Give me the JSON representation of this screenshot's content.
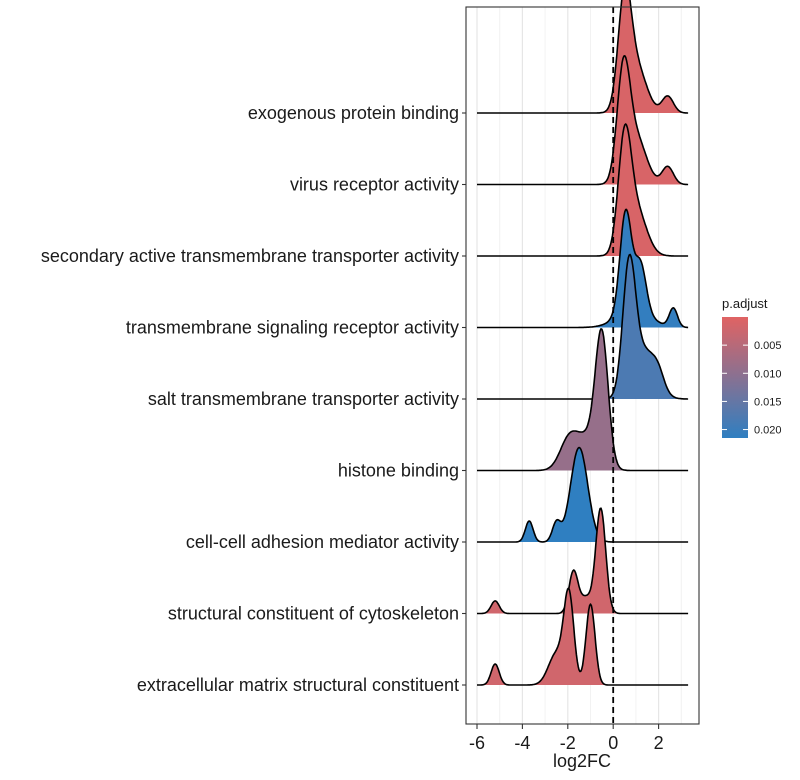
{
  "chart_data": {
    "type": "ridgeline",
    "xlabel": "log2FC",
    "xlim": [
      -6.5,
      3.7
    ],
    "x_ticks": [
      -6,
      -4,
      -2,
      0,
      2
    ],
    "x_tick_labels": [
      "-6",
      "-4",
      "-2",
      "0",
      "2"
    ],
    "reference_line_x": 0,
    "reference_line_style": "dashed",
    "grid": true,
    "color_scale": {
      "title": "p.adjust",
      "low_value": 0.0,
      "high_value": 0.0215,
      "low_color": "#e06363",
      "high_color": "#2f7fc1",
      "ticks": [
        0.005,
        0.01,
        0.015,
        0.02
      ],
      "tick_labels": [
        "0.005",
        "0.010",
        "0.015",
        "0.020"
      ]
    },
    "legend_position": "right",
    "series": [
      {
        "name": "exogenous protein binding",
        "p_adjust": 0.001,
        "x_range": [
          -6.0,
          3.3
        ],
        "peaks": [
          {
            "mu": 0.5,
            "sigma": 0.28,
            "h": 1.0
          },
          {
            "mu": 1.0,
            "sigma": 0.45,
            "h": 0.45
          },
          {
            "mu": 2.4,
            "sigma": 0.25,
            "h": 0.16
          }
        ]
      },
      {
        "name": "virus receptor activity",
        "p_adjust": 0.001,
        "x_range": [
          -6.0,
          3.3
        ],
        "peaks": [
          {
            "mu": 0.45,
            "sigma": 0.28,
            "h": 1.0
          },
          {
            "mu": 1.0,
            "sigma": 0.45,
            "h": 0.45
          },
          {
            "mu": 2.4,
            "sigma": 0.25,
            "h": 0.17
          }
        ]
      },
      {
        "name": "secondary active transmembrane transporter activity",
        "p_adjust": 0.001,
        "x_range": [
          -6.0,
          3.3
        ],
        "peaks": [
          {
            "mu": 0.5,
            "sigma": 0.28,
            "h": 1.0
          },
          {
            "mu": 1.0,
            "sigma": 0.45,
            "h": 0.45
          }
        ]
      },
      {
        "name": "transmembrane signaling receptor activity",
        "p_adjust": 0.021,
        "x_range": [
          -6.0,
          3.3
        ],
        "peaks": [
          {
            "mu": 0.55,
            "sigma": 0.25,
            "h": 0.95
          },
          {
            "mu": 1.2,
            "sigma": 0.25,
            "h": 0.45
          },
          {
            "mu": 2.65,
            "sigma": 0.18,
            "h": 0.18
          },
          {
            "mu": 0.9,
            "sigma": 0.7,
            "h": 0.18
          }
        ]
      },
      {
        "name": "salt transmembrane transporter activity",
        "p_adjust": 0.018,
        "x_range": [
          -6.0,
          3.3
        ],
        "peaks": [
          {
            "mu": 0.7,
            "sigma": 0.28,
            "h": 1.2
          },
          {
            "mu": 1.4,
            "sigma": 0.5,
            "h": 0.45
          },
          {
            "mu": 2.0,
            "sigma": 0.25,
            "h": 0.12
          }
        ]
      },
      {
        "name": "histone binding",
        "p_adjust": 0.009,
        "x_range": [
          -6.0,
          3.3
        ],
        "peaks": [
          {
            "mu": -0.5,
            "sigma": 0.28,
            "h": 1.2
          },
          {
            "mu": -1.95,
            "sigma": 0.4,
            "h": 0.28
          },
          {
            "mu": -1.1,
            "sigma": 0.5,
            "h": 0.3
          }
        ]
      },
      {
        "name": "cell-cell adhesion mediator activity",
        "p_adjust": 0.0215,
        "x_range": [
          -6.0,
          3.3
        ],
        "peaks": [
          {
            "mu": -1.5,
            "sigma": 0.38,
            "h": 0.9
          },
          {
            "mu": -3.7,
            "sigma": 0.17,
            "h": 0.2
          },
          {
            "mu": -2.5,
            "sigma": 0.18,
            "h": 0.18
          }
        ]
      },
      {
        "name": "structural constituent of cytoskeleton",
        "p_adjust": 0.002,
        "x_range": [
          -6.0,
          3.3
        ],
        "peaks": [
          {
            "mu": -0.55,
            "sigma": 0.22,
            "h": 1.0
          },
          {
            "mu": -1.75,
            "sigma": 0.2,
            "h": 0.4
          },
          {
            "mu": -1.2,
            "sigma": 0.25,
            "h": 0.15
          },
          {
            "mu": -5.2,
            "sigma": 0.18,
            "h": 0.12
          }
        ]
      },
      {
        "name": "extracellular matrix structural constituent",
        "p_adjust": 0.002,
        "x_range": [
          -6.0,
          3.3
        ],
        "peaks": [
          {
            "mu": -1.95,
            "sigma": 0.22,
            "h": 0.83
          },
          {
            "mu": -1.0,
            "sigma": 0.2,
            "h": 0.77
          },
          {
            "mu": -2.5,
            "sigma": 0.35,
            "h": 0.3
          },
          {
            "mu": -5.2,
            "sigma": 0.18,
            "h": 0.2
          }
        ]
      }
    ]
  }
}
